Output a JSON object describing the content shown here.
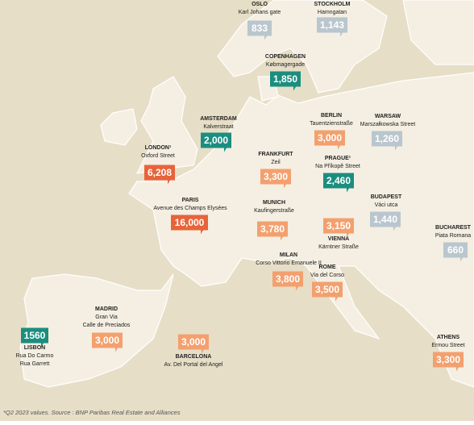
{
  "cities": [
    {
      "name": "OSLO",
      "streets": [
        "Karl Johans gate"
      ],
      "value": "833",
      "color": "#b9c6cd"
    },
    {
      "name": "STOCKHOLM",
      "streets": [
        "Hamngatan"
      ],
      "value": "1,143",
      "color": "#b9c6cd"
    },
    {
      "name": "COPENHAGEN",
      "streets": [
        "Købmagergade"
      ],
      "value": "1,850",
      "color": "#1b8e80"
    },
    {
      "name": "AMSTERDAM",
      "streets": [
        "Kalverstraat"
      ],
      "value": "2,000",
      "color": "#1b8e80"
    },
    {
      "name": "LONDON¹",
      "streets": [
        "Oxford Street"
      ],
      "value": "6,208",
      "color": "#e8633a"
    },
    {
      "name": "BERLIN",
      "streets": [
        "Tauentzienstraße"
      ],
      "value": "3,000",
      "color": "#f3a06f"
    },
    {
      "name": "WARSAW",
      "streets": [
        "Marszałkowska Street"
      ],
      "value": "1,260",
      "color": "#b9c6cd"
    },
    {
      "name": "FRANKFURT",
      "streets": [
        "Zeil"
      ],
      "value": "3,300",
      "color": "#f3a06f"
    },
    {
      "name": "PRAGUE¹",
      "streets": [
        "Na Příkopě Street"
      ],
      "value": "2,460",
      "color": "#1b8e80"
    },
    {
      "name": "PARIS",
      "streets": [
        "Avenue des Champs Elysées"
      ],
      "value": "16,000",
      "color": "#e8633a"
    },
    {
      "name": "MUNICH",
      "streets": [
        "Kaufingerstraße"
      ],
      "value": "3,780",
      "color": "#f3a06f"
    },
    {
      "name": "BUDAPEST",
      "streets": [
        "Váci utca"
      ],
      "value": "1,440",
      "color": "#b9c6cd"
    },
    {
      "name": "VIENNA",
      "streets": [
        "Kärntner Straße"
      ],
      "value": "3,150",
      "color": "#f3a06f"
    },
    {
      "name": "BUCHAREST",
      "streets": [
        "Piata Romana"
      ],
      "value": "660",
      "color": "#b9c6cd"
    },
    {
      "name": "MILAN",
      "streets": [
        "Corso Vittorio Emanuele II"
      ],
      "value": "3,800",
      "color": "#f3a06f"
    },
    {
      "name": "ROME",
      "streets": [
        "Via del Corso"
      ],
      "value": "3,500",
      "color": "#f3a06f"
    },
    {
      "name": "MADRID",
      "streets": [
        "Gran Via",
        "Calle de Preciados"
      ],
      "value": "3,000",
      "color": "#f3a06f"
    },
    {
      "name": "LISBON",
      "streets": [
        "Rua Do Carmo",
        "Rua Garrett"
      ],
      "value": "1560",
      "color": "#1b8e80"
    },
    {
      "name": "BARCELONA",
      "streets": [
        "Av. Del Portal del Angel"
      ],
      "value": "3,000",
      "color": "#f3a06f"
    },
    {
      "name": "ATHENS",
      "streets": [
        "Ermou Street"
      ],
      "value": "3,300",
      "color": "#f3a06f"
    }
  ],
  "footnote": "*Q2 2023 values. Source : BNP Paribas Real Estate and Alliances"
}
